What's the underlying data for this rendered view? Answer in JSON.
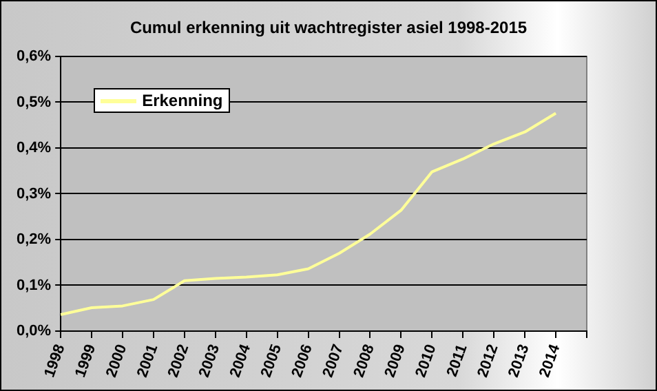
{
  "chart_data": {
    "type": "line",
    "title": "Cumul erkenning uit wachtregister asiel 1998-2015",
    "categories": [
      "1998",
      "1999",
      "2000",
      "2001",
      "2002",
      "2003",
      "2004",
      "2005",
      "2006",
      "2007",
      "2008",
      "2009",
      "2010",
      "2011",
      "2012",
      "2013",
      "2014",
      null
    ],
    "series": [
      {
        "name": "Erkenning",
        "color": "#ffff99",
        "values": [
          0.036,
          0.051,
          0.055,
          0.069,
          0.11,
          0.115,
          0.118,
          0.123,
          0.136,
          0.17,
          0.212,
          0.264,
          0.348,
          0.376,
          0.409,
          0.435,
          0.476,
          null
        ]
      }
    ],
    "ylim": [
      0,
      0.6
    ],
    "yticks": [
      {
        "value": 0,
        "label": "0,0%"
      },
      {
        "value": 0.1,
        "label": "0,1%"
      },
      {
        "value": 0.2,
        "label": "0,2%"
      },
      {
        "value": 0.3,
        "label": "0,3%"
      },
      {
        "value": 0.4,
        "label": "0,4%"
      },
      {
        "value": 0.5,
        "label": "0,5%"
      },
      {
        "value": 0.6,
        "label": "0,6%"
      }
    ],
    "grid": "y",
    "legend": "top left",
    "marker": "none",
    "line_style": "solid"
  }
}
